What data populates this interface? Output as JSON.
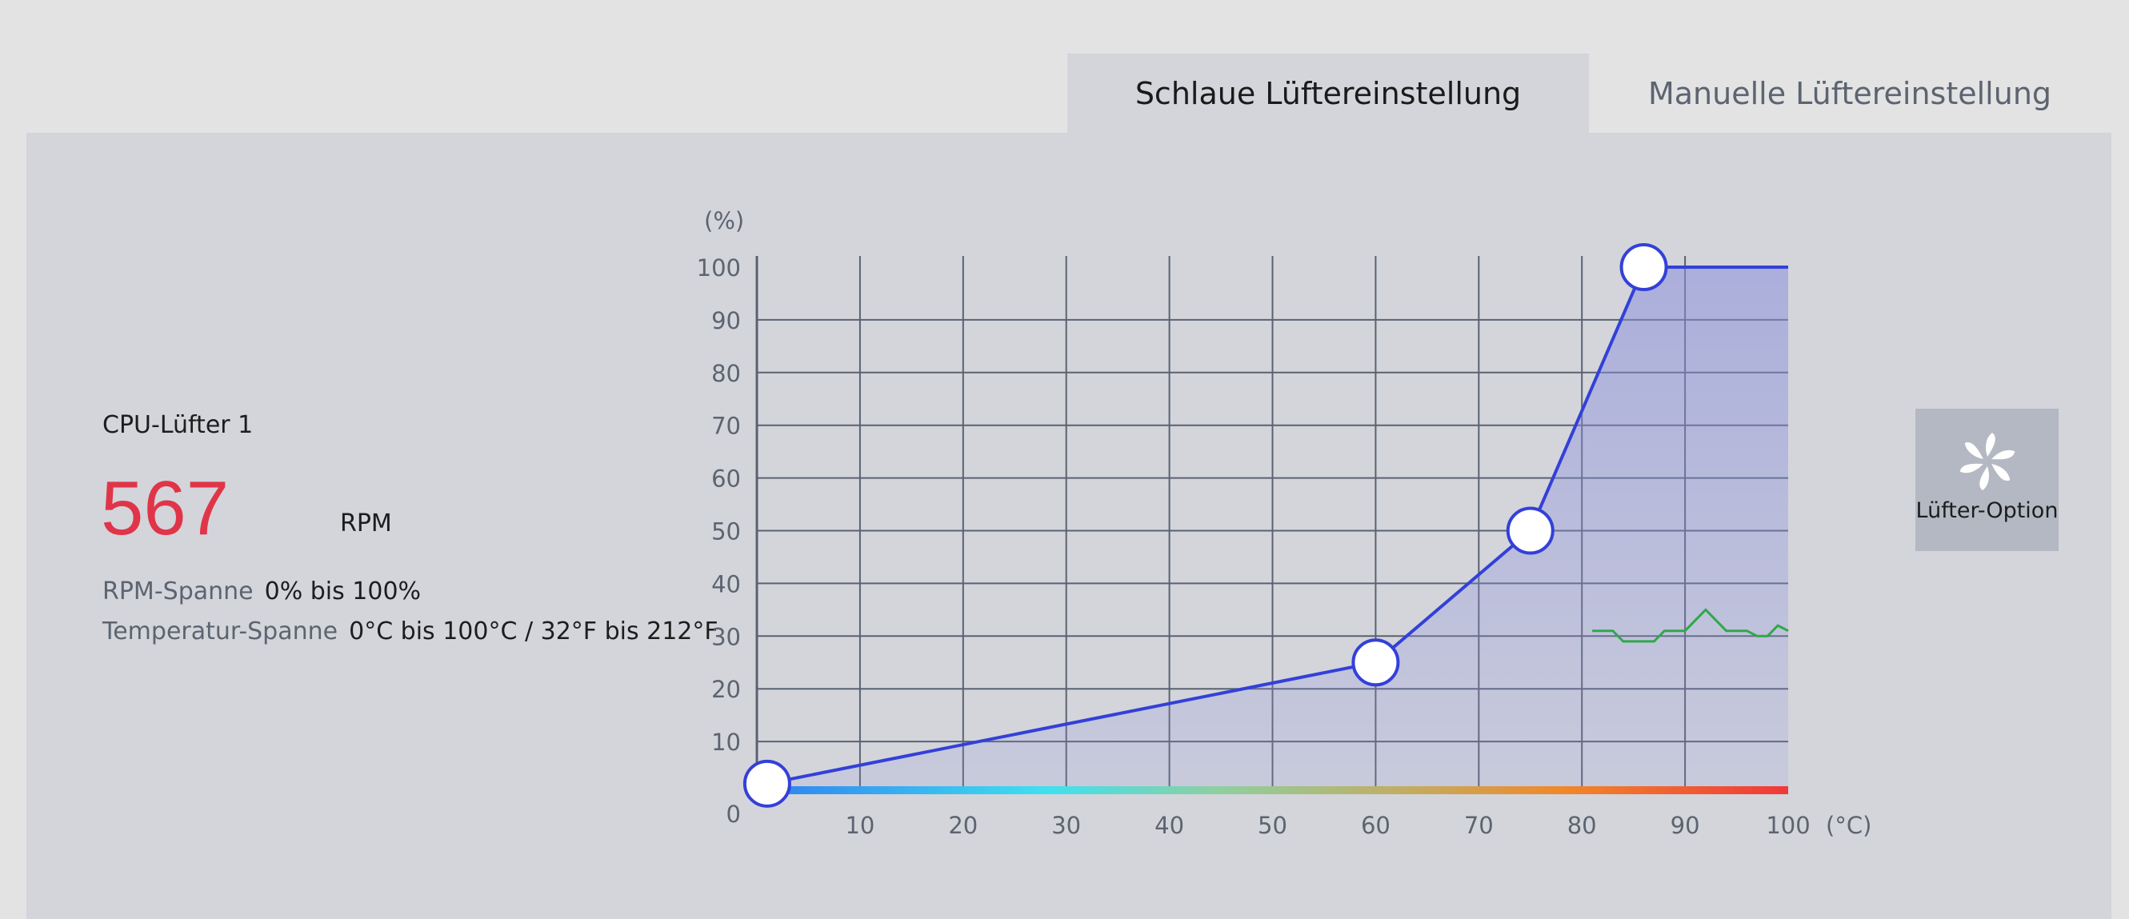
{
  "tabs": [
    {
      "label": "Schlaue Lüftereinstellung",
      "active": true
    },
    {
      "label": "Manuelle Lüftereinstellung",
      "active": false
    }
  ],
  "fan": {
    "name": "CPU-Lüfter 1",
    "rpm": "567",
    "rpm_unit": "RPM",
    "rpm_range_label": "RPM-Spanne",
    "rpm_range_value": "0% bis 100%",
    "temp_range_label": "Temperatur-Spanne",
    "temp_range_value": "0°C bis 100°C / 32°F bis 212°F"
  },
  "fan_option": {
    "label": "Lüfter-Option",
    "icon": "fan-icon"
  },
  "colors": {
    "curve": "#3340d8",
    "fill": "#8a8fdb",
    "temperature_line": "#2fa84a",
    "rpm_value": "#e03549",
    "grid": "#5a6270"
  },
  "chart_data": {
    "type": "line",
    "y_unit": "(%)",
    "x_unit": "(°C)",
    "xlim": [
      0,
      100
    ],
    "ylim": [
      0,
      100
    ],
    "x_ticks": [
      "10",
      "20",
      "30",
      "40",
      "50",
      "60",
      "70",
      "80",
      "90",
      "100"
    ],
    "y_ticks": [
      "0",
      "10",
      "20",
      "30",
      "40",
      "50",
      "60",
      "70",
      "80",
      "90",
      "100"
    ],
    "grid": true,
    "series": [
      {
        "role": "fan-curve",
        "points": [
          [
            1,
            2
          ],
          [
            60,
            25
          ],
          [
            75,
            50
          ],
          [
            86,
            100
          ],
          [
            100,
            100
          ]
        ]
      },
      {
        "role": "temperature-history",
        "points": [
          [
            81,
            31
          ],
          [
            83,
            31
          ],
          [
            84,
            29
          ],
          [
            87,
            29
          ],
          [
            88,
            31
          ],
          [
            90,
            31
          ],
          [
            92,
            35
          ],
          [
            94,
            31
          ],
          [
            96,
            31
          ],
          [
            97,
            30
          ],
          [
            98,
            30
          ],
          [
            99,
            32
          ],
          [
            100,
            31
          ]
        ]
      }
    ]
  }
}
